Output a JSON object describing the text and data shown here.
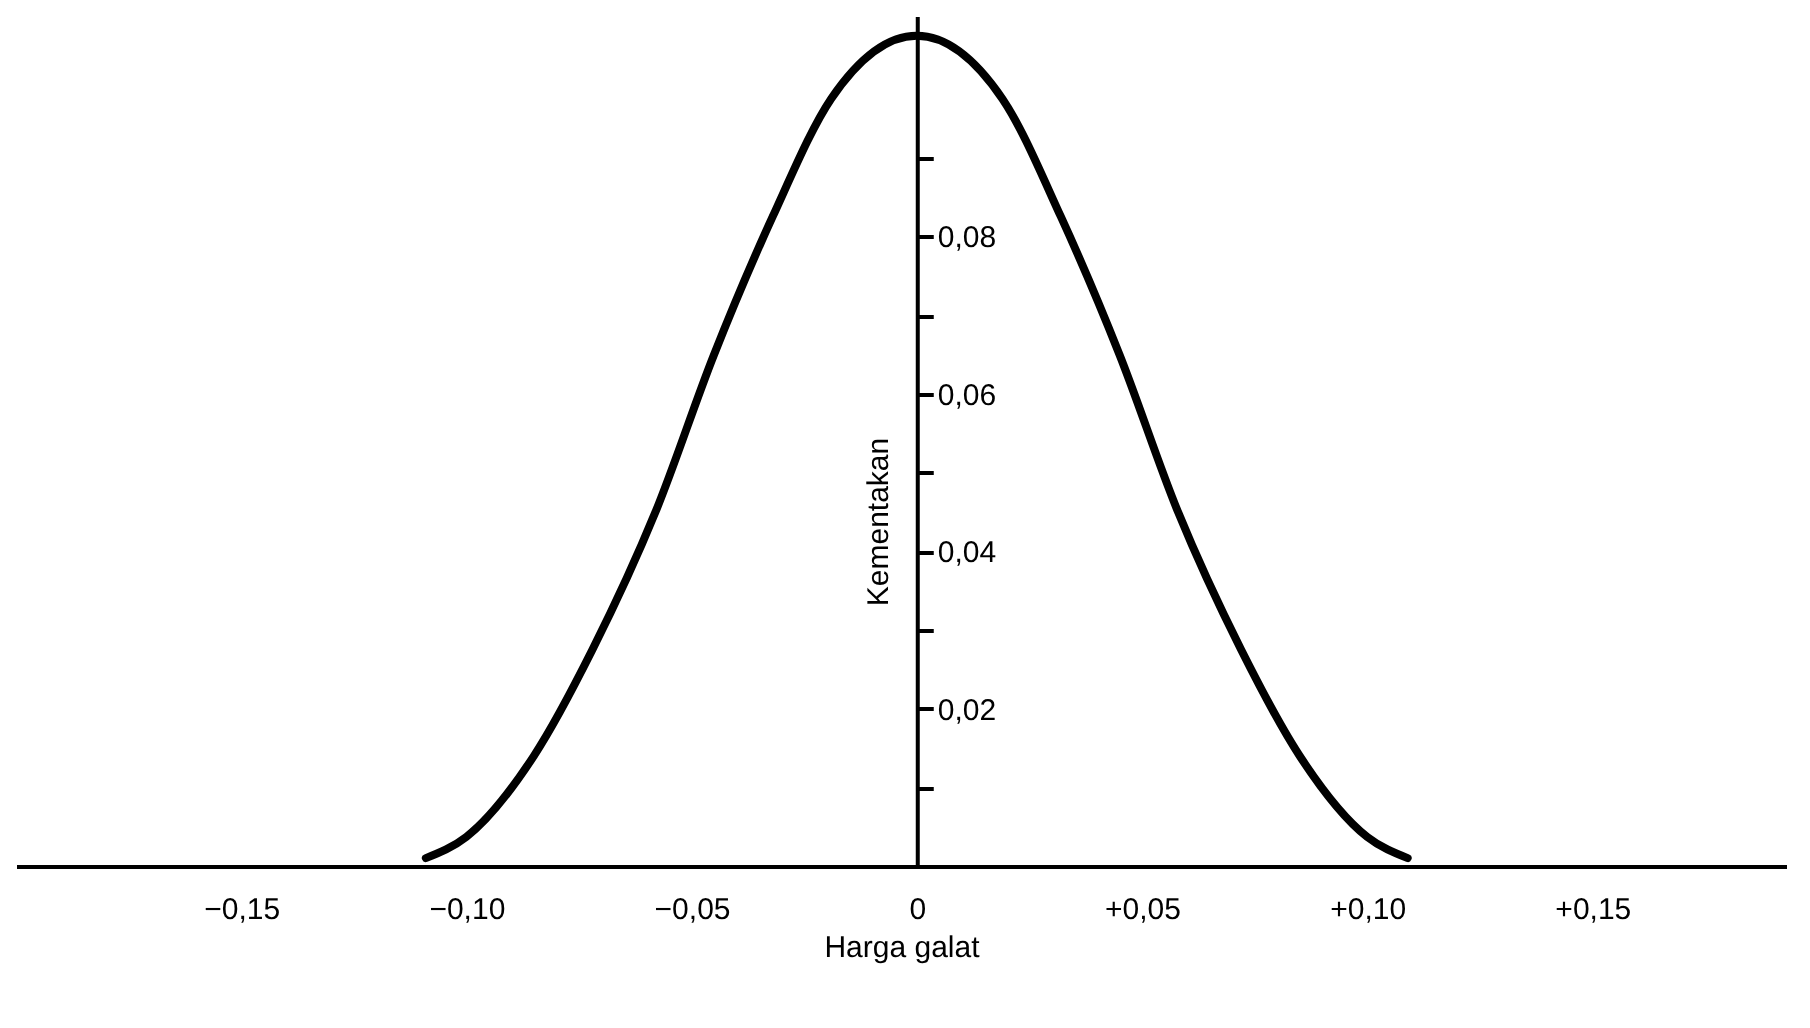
{
  "chart_data": {
    "type": "line",
    "xlabel": "Harga galat",
    "ylabel": "Kementakan",
    "x": [
      -0.109,
      -0.1,
      -0.085,
      -0.072,
      -0.058,
      -0.045,
      -0.032,
      -0.019,
      0,
      0.019,
      0.032,
      0.045,
      0.058,
      0.072,
      0.085,
      0.1,
      0.109
    ],
    "series": [
      {
        "color": "#000000",
        "values": [
          0.001,
          0.0037,
          0.014,
          0.0275,
          0.045,
          0.065,
          0.0825,
          0.0975,
          0.1055,
          0.0975,
          0.0825,
          0.065,
          0.045,
          0.0275,
          0.014,
          0.0037,
          0.001
        ]
      }
    ],
    "xlim": [
      -0.2,
      0.193
    ],
    "ylim": [
      0,
      0.108
    ],
    "xticks": [
      {
        "value": -0.15,
        "label": "−0,15"
      },
      {
        "value": -0.1,
        "label": "−0,10"
      },
      {
        "value": -0.05,
        "label": "−0,05"
      },
      {
        "value": 0,
        "label": "0"
      },
      {
        "value": 0.05,
        "label": "+0,05"
      },
      {
        "value": 0.1,
        "label": "+0,10"
      },
      {
        "value": 0.15,
        "label": "+0,15"
      }
    ],
    "yticks": [
      {
        "value": 0.01,
        "label": null
      },
      {
        "value": 0.02,
        "label": "0,02"
      },
      {
        "value": 0.03,
        "label": null
      },
      {
        "value": 0.04,
        "label": "0,04"
      },
      {
        "value": 0.05,
        "label": null
      },
      {
        "value": 0.06,
        "label": "0,06"
      },
      {
        "value": 0.07,
        "label": null
      },
      {
        "value": 0.08,
        "label": "0,08"
      },
      {
        "value": 0.09,
        "label": null
      }
    ],
    "grid": false,
    "marker": "none",
    "line_style": "solid"
  }
}
